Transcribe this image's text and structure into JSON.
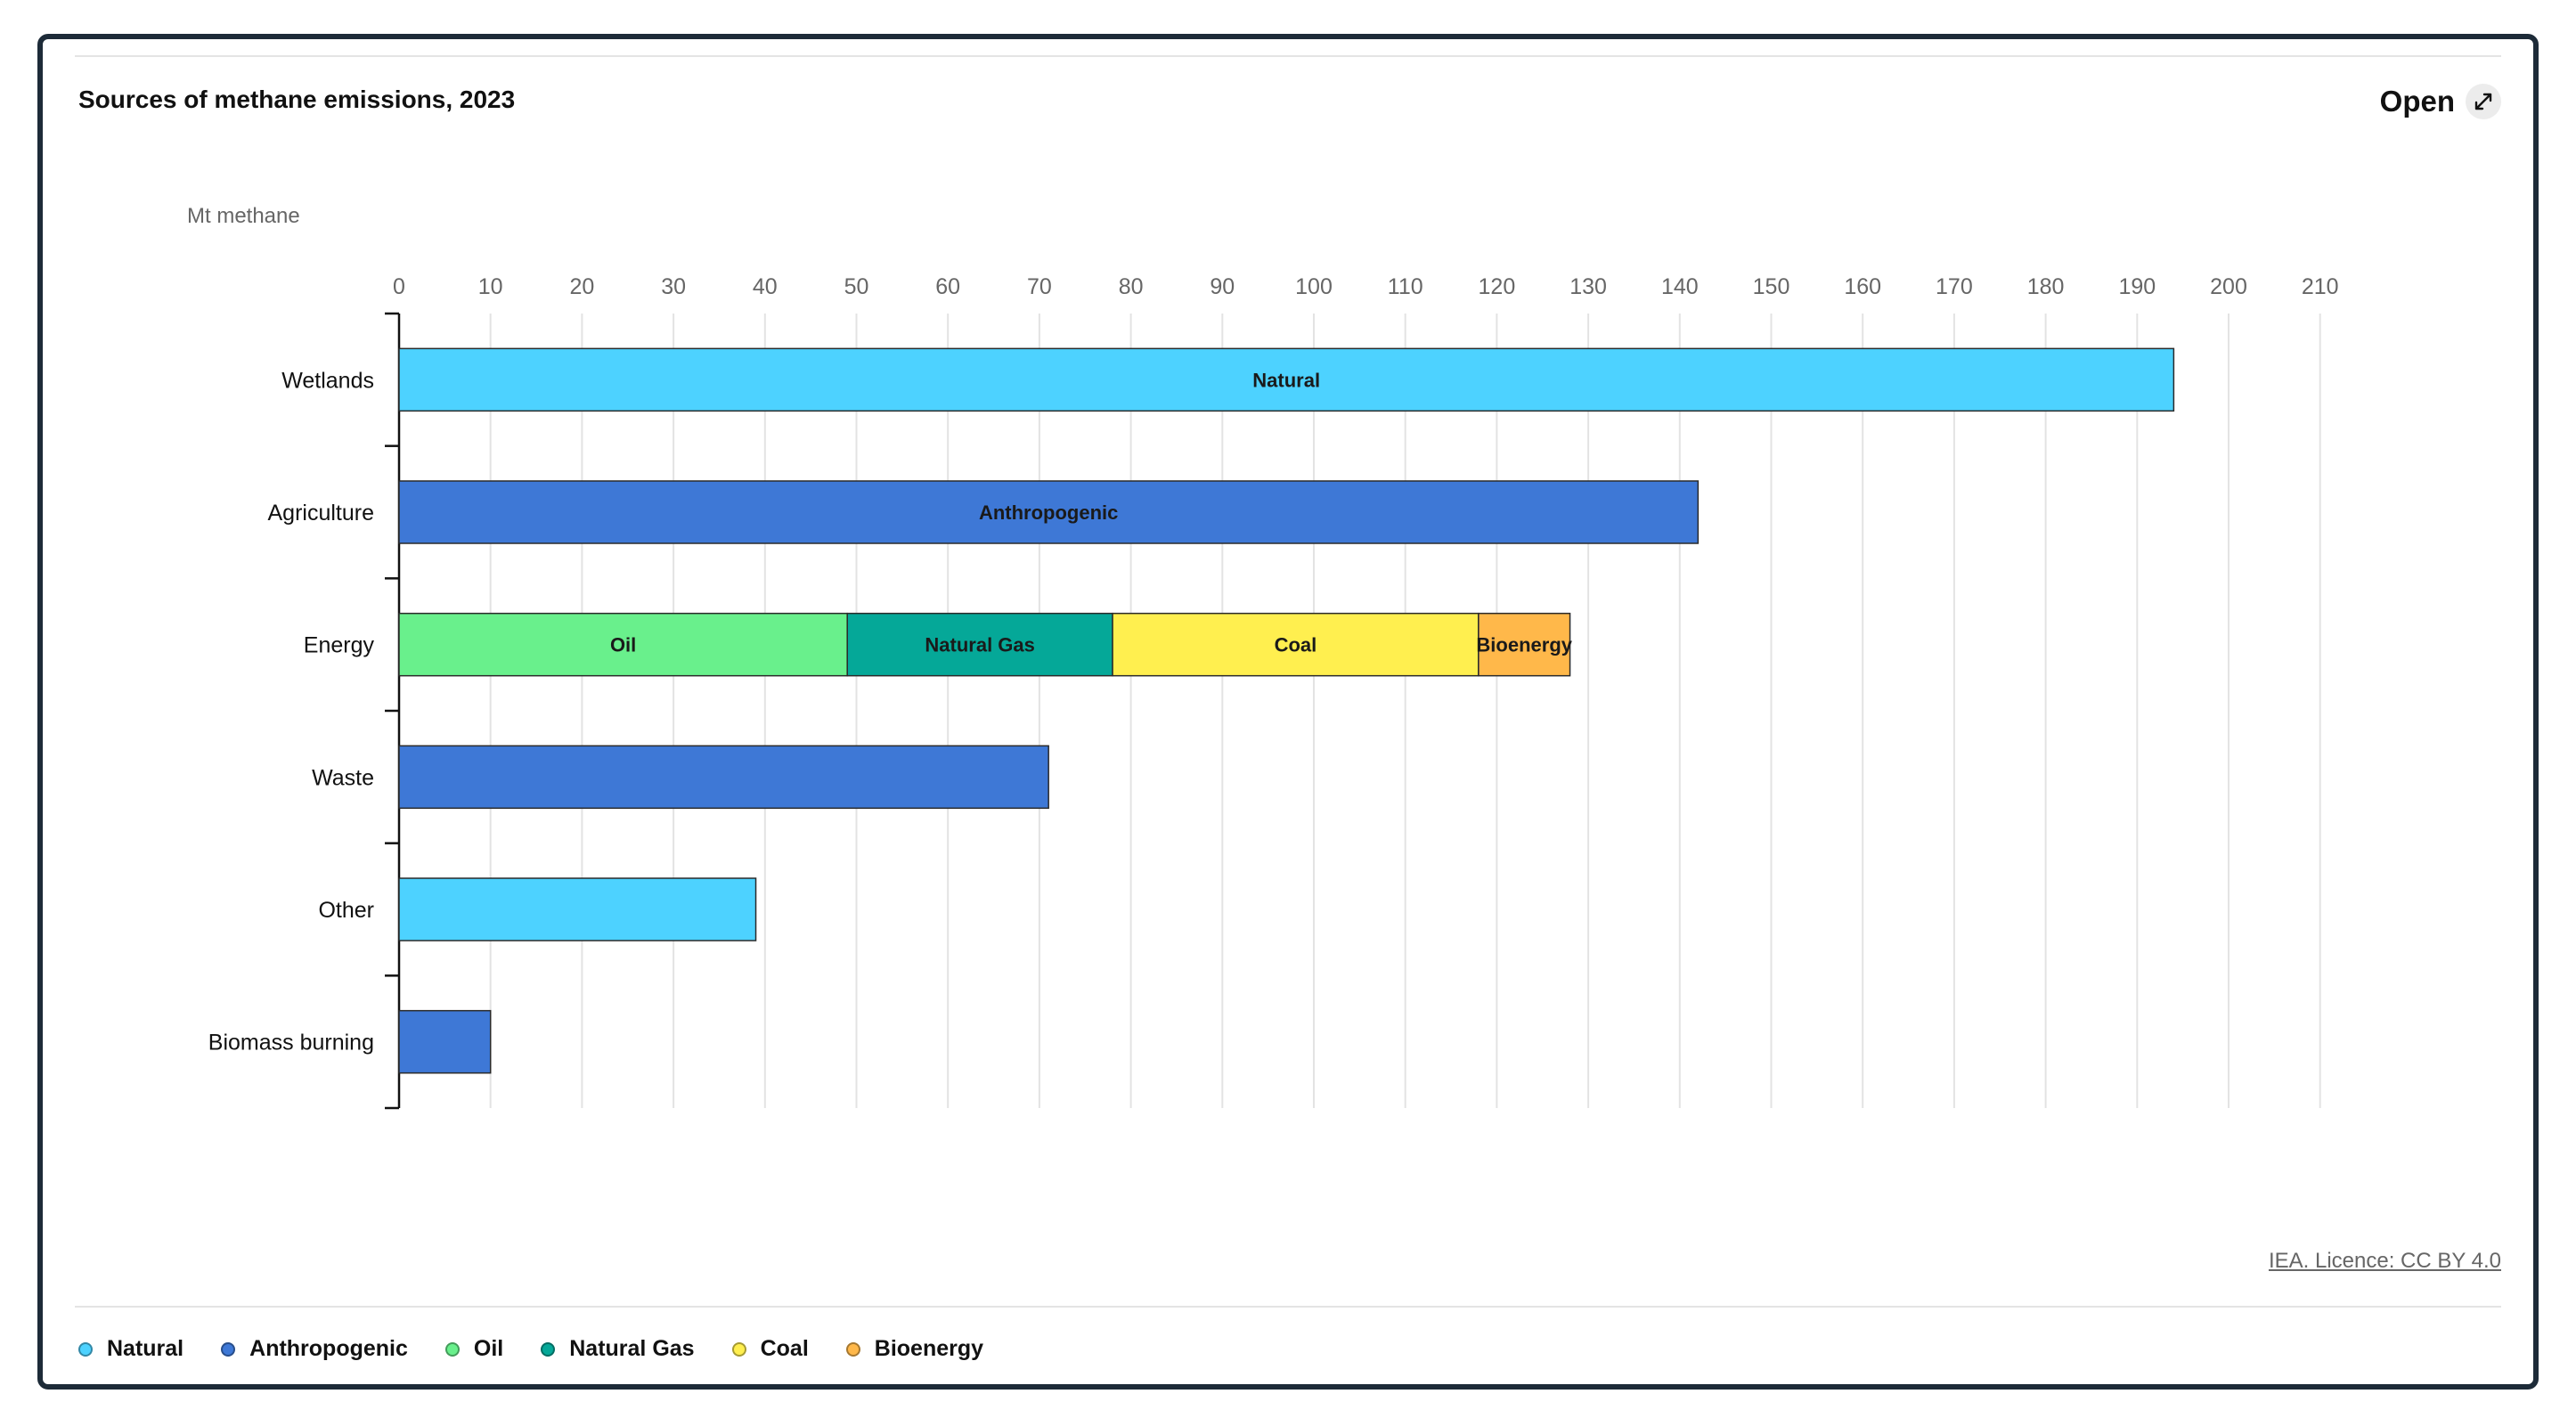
{
  "header": {
    "title": "Sources of methane emissions, 2023",
    "open_label": "Open"
  },
  "footer": {
    "licence": "IEA. Licence: CC BY 4.0"
  },
  "legend": {
    "items": [
      {
        "label": "Natural",
        "color": "#4dd2ff"
      },
      {
        "label": "Anthropogenic",
        "color": "#3e78d6"
      },
      {
        "label": "Oil",
        "color": "#69f08c"
      },
      {
        "label": "Natural Gas",
        "color": "#05a898"
      },
      {
        "label": "Coal",
        "color": "#ffef4f"
      },
      {
        "label": "Bioenergy",
        "color": "#ffb84a"
      }
    ]
  },
  "chart_data": {
    "type": "bar",
    "orientation": "horizontal",
    "stacked": true,
    "title": "Sources of methane emissions, 2023",
    "ylabel": "Mt methane",
    "xlim": [
      0,
      210
    ],
    "xticks": [
      0,
      10,
      20,
      30,
      40,
      50,
      60,
      70,
      80,
      90,
      100,
      110,
      120,
      130,
      140,
      150,
      160,
      170,
      180,
      190,
      200,
      210
    ],
    "grid": true,
    "legend_position": "bottom",
    "categories": [
      "Wetlands",
      "Agriculture",
      "Energy",
      "Waste",
      "Other",
      "Biomass burning"
    ],
    "series": [
      {
        "name": "Natural",
        "color": "#4dd2ff",
        "values": [
          194,
          0,
          0,
          0,
          39,
          0
        ]
      },
      {
        "name": "Anthropogenic",
        "color": "#3e78d6",
        "values": [
          0,
          142,
          0,
          71,
          0,
          10
        ]
      },
      {
        "name": "Oil",
        "color": "#69f08c",
        "values": [
          0,
          0,
          49,
          0,
          0,
          0
        ]
      },
      {
        "name": "Natural Gas",
        "color": "#05a898",
        "values": [
          0,
          0,
          29,
          0,
          0,
          0
        ]
      },
      {
        "name": "Coal",
        "color": "#ffef4f",
        "values": [
          0,
          0,
          40,
          0,
          0,
          0
        ]
      },
      {
        "name": "Bioenergy",
        "color": "#ffb84a",
        "values": [
          0,
          0,
          10,
          0,
          0,
          0
        ]
      }
    ],
    "bar_labels": [
      {
        "category": "Wetlands",
        "series": "Natural",
        "text": "Natural"
      },
      {
        "category": "Agriculture",
        "series": "Anthropogenic",
        "text": "Anthropogenic"
      },
      {
        "category": "Energy",
        "series": "Oil",
        "text": "Oil"
      },
      {
        "category": "Energy",
        "series": "Natural Gas",
        "text": "Natural Gas"
      },
      {
        "category": "Energy",
        "series": "Coal",
        "text": "Coal"
      },
      {
        "category": "Energy",
        "series": "Bioenergy",
        "text": "Bioenergy"
      }
    ]
  }
}
